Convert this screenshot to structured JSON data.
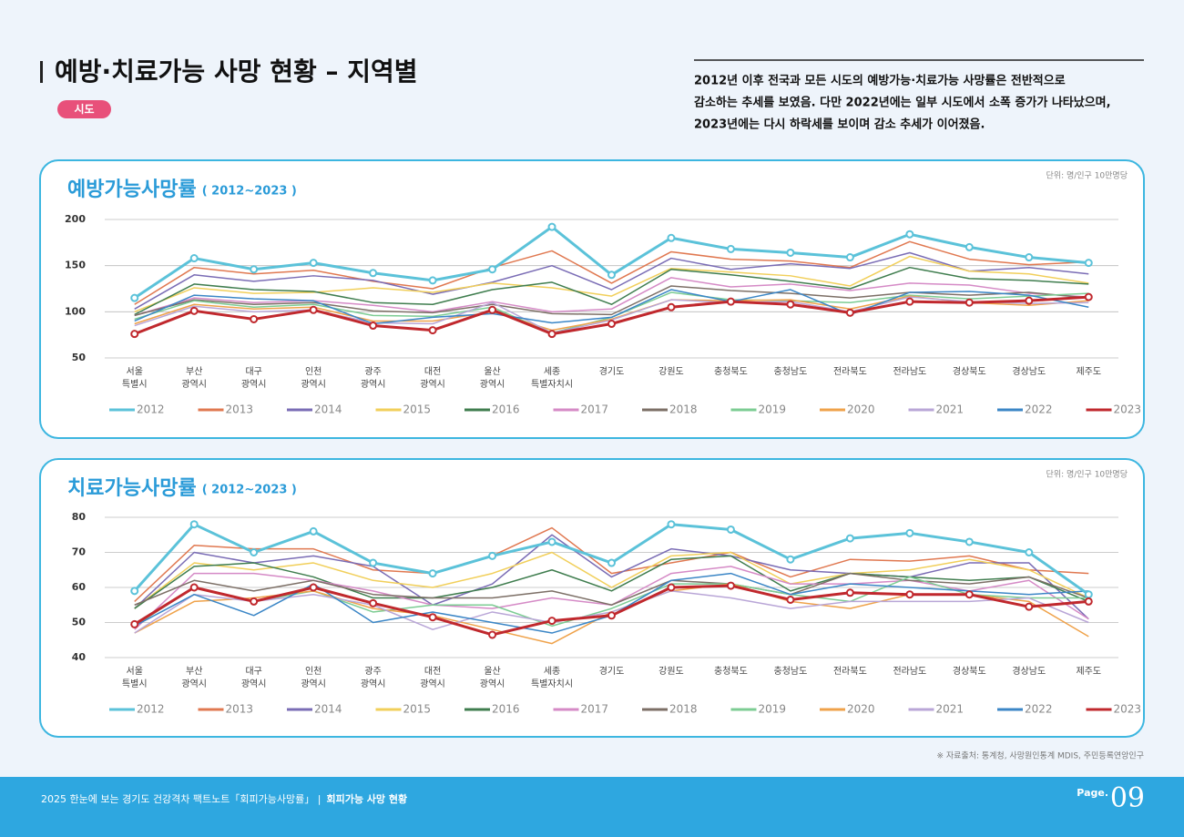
{
  "header": {
    "title": "예방·치료가능 사망 현황 – 지역별",
    "tag": "시도",
    "description": [
      "2012년 이후 전국과 모든 시도의 예방가능·치료가능 사망률은 전반적으로",
      "감소하는 추세를 보였음. 다만 2022년에는 일부 시도에서 소폭 증가가 나타났으며,",
      "2023년에는 다시 하락세를 보이며 감소 추세가 이어졌음."
    ]
  },
  "chart_data": [
    {
      "type": "line",
      "title": "예방가능사망률",
      "subtitle": "( 2012~2023 )",
      "unit": "단위: 명/인구 10만명당",
      "categories": [
        "서울\n특별시",
        "부산\n광역시",
        "대구\n광역시",
        "인천\n광역시",
        "광주\n광역시",
        "대전\n광역시",
        "울산\n광역시",
        "세종\n특별자치시",
        "경기도",
        "강원도",
        "충청북도",
        "충청남도",
        "전라북도",
        "전라남도",
        "경상북도",
        "경상남도",
        "제주도"
      ],
      "ylim": [
        50,
        200
      ],
      "yticks": [
        50,
        100,
        150,
        200
      ],
      "grid": true,
      "series": [
        {
          "name": "2012",
          "color": "#5bc2d9",
          "markers": true,
          "values": [
            115,
            158,
            146,
            153,
            142,
            134,
            146,
            192,
            140,
            180,
            168,
            164,
            159,
            184,
            170,
            159,
            153
          ]
        },
        {
          "name": "2013",
          "color": "#e07850",
          "values": [
            108,
            148,
            141,
            145,
            133,
            125,
            148,
            166,
            131,
            165,
            157,
            155,
            148,
            176,
            157,
            151,
            154
          ]
        },
        {
          "name": "2014",
          "color": "#7a6cb5",
          "values": [
            103,
            140,
            133,
            139,
            134,
            119,
            132,
            150,
            124,
            158,
            146,
            152,
            147,
            164,
            144,
            148,
            141
          ]
        },
        {
          "name": "2015",
          "color": "#f1cf5a",
          "values": [
            100,
            126,
            120,
            121,
            126,
            121,
            131,
            126,
            117,
            147,
            143,
            139,
            128,
            160,
            144,
            141,
            131
          ]
        },
        {
          "name": "2016",
          "color": "#3f7d4e",
          "values": [
            97,
            130,
            124,
            122,
            110,
            108,
            124,
            132,
            108,
            146,
            140,
            133,
            125,
            148,
            136,
            134,
            130
          ]
        },
        {
          "name": "2017",
          "color": "#d58ac6",
          "values": [
            96,
            115,
            110,
            112,
            107,
            100,
            111,
            100,
            103,
            137,
            127,
            130,
            123,
            131,
            129,
            120,
            116
          ]
        },
        {
          "name": "2018",
          "color": "#7c6f66",
          "values": [
            96,
            113,
            108,
            110,
            101,
            99,
            108,
            98,
            97,
            128,
            123,
            120,
            115,
            121,
            118,
            121,
            115
          ]
        },
        {
          "name": "2019",
          "color": "#7ccc93",
          "values": [
            92,
            112,
            105,
            108,
            96,
            95,
            105,
            77,
            94,
            121,
            113,
            112,
            110,
            118,
            114,
            117,
            120
          ]
        },
        {
          "name": "2020",
          "color": "#efa24a",
          "values": [
            87,
            108,
            103,
            105,
            90,
            90,
            100,
            80,
            92,
            113,
            112,
            113,
            103,
            117,
            110,
            107,
            112
          ]
        },
        {
          "name": "2021",
          "color": "#b9a6d7",
          "values": [
            85,
            106,
            100,
            102,
            88,
            87,
            110,
            77,
            91,
            113,
            110,
            111,
            100,
            116,
            111,
            109,
            110
          ]
        },
        {
          "name": "2022",
          "color": "#3b86c6",
          "values": [
            90,
            118,
            114,
            112,
            87,
            94,
            98,
            88,
            94,
            124,
            111,
            124,
            97,
            121,
            122,
            118,
            105
          ]
        },
        {
          "name": "2023",
          "color": "#c0282d",
          "markers": true,
          "values": [
            76,
            101,
            92,
            102,
            85,
            80,
            102,
            76,
            87,
            105,
            111,
            108,
            99,
            111,
            110,
            112,
            116
          ]
        }
      ]
    },
    {
      "type": "line",
      "title": "치료가능사망률",
      "subtitle": "( 2012~2023 )",
      "unit": "단위: 명/인구 10만명당",
      "categories": [
        "서울\n특별시",
        "부산\n광역시",
        "대구\n광역시",
        "인천\n광역시",
        "광주\n광역시",
        "대전\n광역시",
        "울산\n광역시",
        "세종\n특별자치시",
        "경기도",
        "강원도",
        "충청북도",
        "충청남도",
        "전라북도",
        "전라남도",
        "경상북도",
        "경상남도",
        "제주도"
      ],
      "ylim": [
        40,
        80
      ],
      "yticks": [
        40,
        50,
        60,
        70,
        80
      ],
      "grid": true,
      "series": [
        {
          "name": "2012",
          "color": "#5bc2d9",
          "markers": true,
          "values": [
            59,
            78,
            70,
            76,
            67,
            64,
            69,
            73,
            67,
            78,
            76.5,
            68,
            74,
            75.5,
            73,
            70,
            58
          ]
        },
        {
          "name": "2013",
          "color": "#e07850",
          "values": [
            56,
            72,
            71,
            71,
            65,
            64,
            69,
            77,
            64,
            67,
            70,
            63,
            68,
            67.5,
            69,
            65,
            64
          ]
        },
        {
          "name": "2014",
          "color": "#7a6cb5",
          "values": [
            54,
            70,
            67,
            69,
            66,
            55,
            61,
            75,
            63,
            71,
            69,
            65,
            64,
            63,
            67,
            67,
            51
          ]
        },
        {
          "name": "2015",
          "color": "#f1cf5a",
          "values": [
            54,
            67,
            65,
            67,
            62,
            60,
            64,
            70,
            60,
            69,
            70,
            61,
            64,
            65,
            68,
            65,
            57
          ]
        },
        {
          "name": "2016",
          "color": "#3f7d4e",
          "values": [
            54,
            66,
            67,
            63,
            57,
            57,
            60,
            65,
            59,
            68,
            69,
            59,
            64,
            63,
            62,
            63,
            56
          ]
        },
        {
          "name": "2017",
          "color": "#d58ac6",
          "values": [
            48,
            64,
            64,
            62,
            59,
            55,
            54,
            57,
            55,
            64,
            66,
            61,
            61,
            62,
            59,
            62,
            51
          ]
        },
        {
          "name": "2018",
          "color": "#7c6f66",
          "values": [
            55,
            62,
            59,
            62,
            58,
            57,
            57,
            59,
            55,
            62,
            61,
            58,
            64,
            62,
            61,
            63,
            57
          ]
        },
        {
          "name": "2019",
          "color": "#7ccc93",
          "values": [
            49,
            60,
            56,
            59,
            53,
            55,
            55,
            49,
            54,
            61,
            61,
            58,
            56,
            63,
            58,
            57,
            57
          ]
        },
        {
          "name": "2020",
          "color": "#efa24a",
          "values": [
            47,
            56,
            57,
            59,
            54,
            52,
            48,
            44,
            53,
            59,
            61,
            56,
            54,
            58,
            58,
            56,
            46
          ]
        },
        {
          "name": "2021",
          "color": "#b9a6d7",
          "values": [
            47,
            58,
            56,
            58,
            55,
            48,
            53,
            50,
            53,
            59,
            57,
            54,
            56,
            56,
            56,
            57,
            50
          ]
        },
        {
          "name": "2022",
          "color": "#3b86c6",
          "values": [
            49,
            58,
            52,
            61,
            50,
            53,
            50,
            47,
            52,
            62,
            64,
            58,
            61,
            60,
            59,
            58,
            59
          ]
        },
        {
          "name": "2023",
          "color": "#c0282d",
          "markers": true,
          "values": [
            49.5,
            60,
            56,
            60,
            55.5,
            51.5,
            46.5,
            50.5,
            52,
            60,
            60.5,
            56.5,
            58.5,
            58,
            58,
            54.5,
            56
          ]
        }
      ]
    }
  ],
  "source": "※ 자료출처: 통계청, 사망원인통계 MDIS, 주민등록연앙인구",
  "footer": {
    "text": "2025 한눈에 보는 경기도 건강격차 팩트노트「회피가능사망률」 |",
    "section": "회피가능 사망 현황",
    "page_label": "Page.",
    "page_number": "09"
  }
}
